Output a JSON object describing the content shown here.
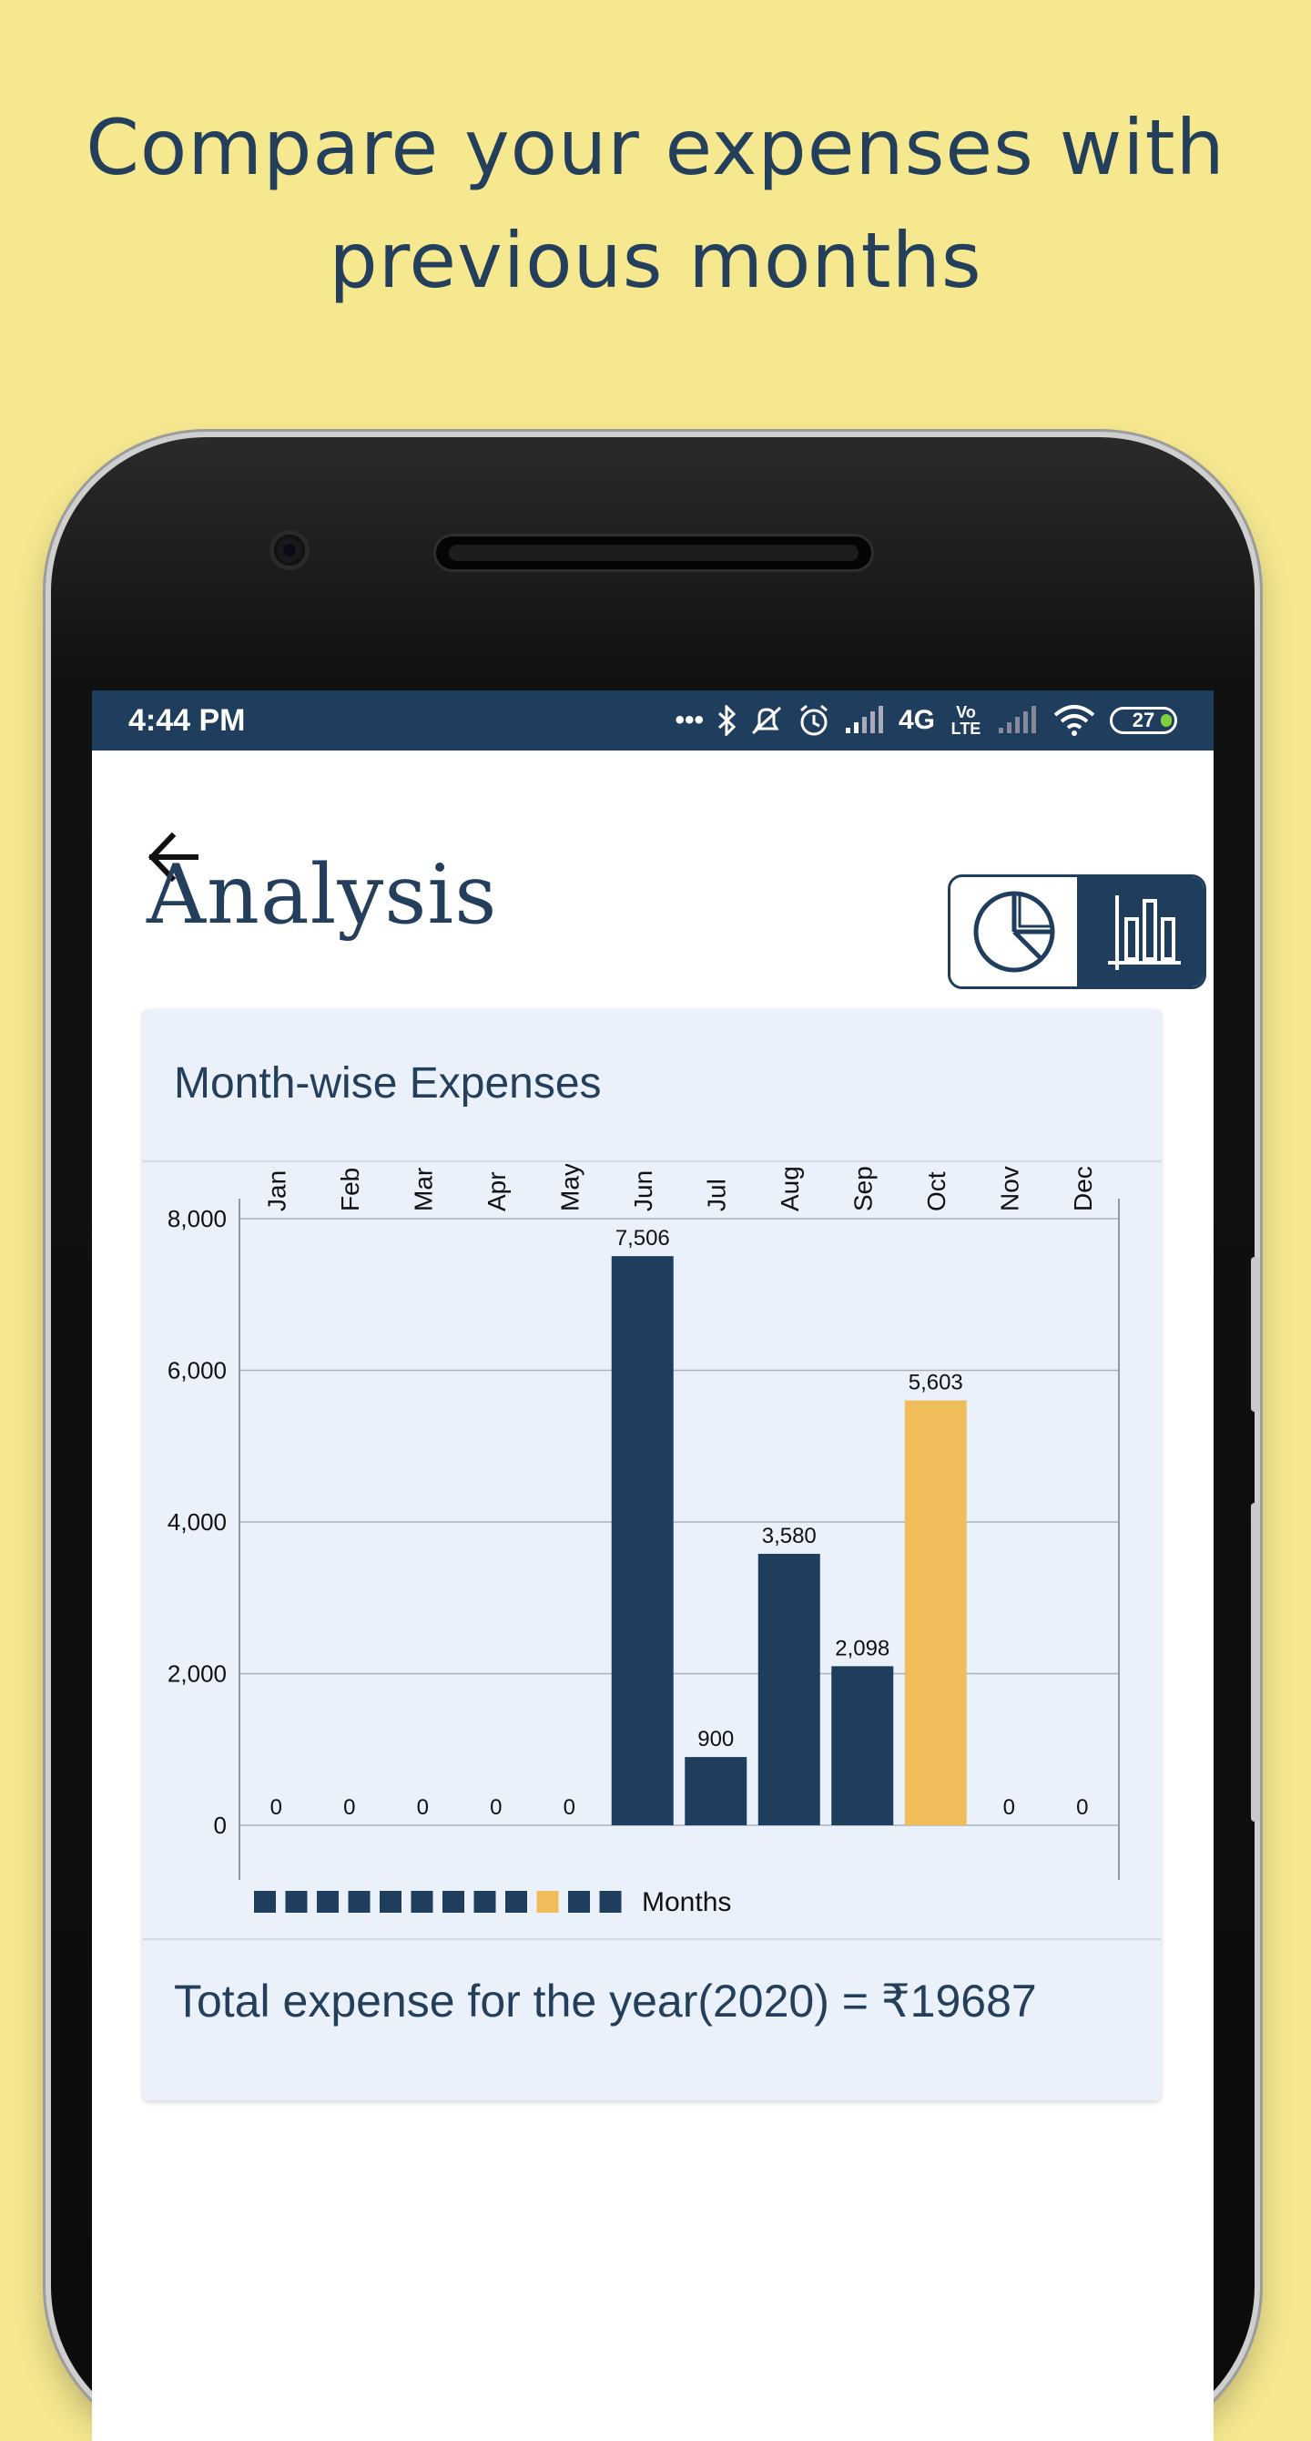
{
  "headline": {
    "line1": "Compare your expenses with",
    "line2": "previous months"
  },
  "status_bar": {
    "time": "4:44 PM",
    "network": "4G",
    "volte": "Vo LTE",
    "battery": "27"
  },
  "screen": {
    "title": "Analysis",
    "toggle": {
      "pie_icon": "pie-chart-icon",
      "bar_icon": "bar-chart-icon",
      "active": "bar"
    }
  },
  "card": {
    "title": "Month-wise Expenses",
    "total": "Total expense for the year(2020) = ₹19687"
  },
  "colors": {
    "navy": "#1f3d5c",
    "highlight": "#efbe5b",
    "background": "#f5e88f"
  },
  "chart_data": {
    "type": "bar",
    "categories": [
      "Jan",
      "Feb",
      "Mar",
      "Apr",
      "May",
      "Jun",
      "Jul",
      "Aug",
      "Sep",
      "Oct",
      "Nov",
      "Dec"
    ],
    "values": [
      0,
      0,
      0,
      0,
      0,
      7506,
      900,
      3580,
      2098,
      5603,
      0,
      0
    ],
    "value_labels": [
      "0",
      "0",
      "0",
      "0",
      "0",
      "7,506",
      "900",
      "3,580",
      "2,098",
      "5,603",
      "0",
      "0"
    ],
    "highlighted_category": "Oct",
    "y_ticks": [
      "0",
      "2,000",
      "4,000",
      "6,000",
      "8,000"
    ],
    "ylim": [
      0,
      8000
    ],
    "grid": true,
    "legend": {
      "label": "Months",
      "position": "bottom"
    },
    "x_axis_position": "top"
  }
}
